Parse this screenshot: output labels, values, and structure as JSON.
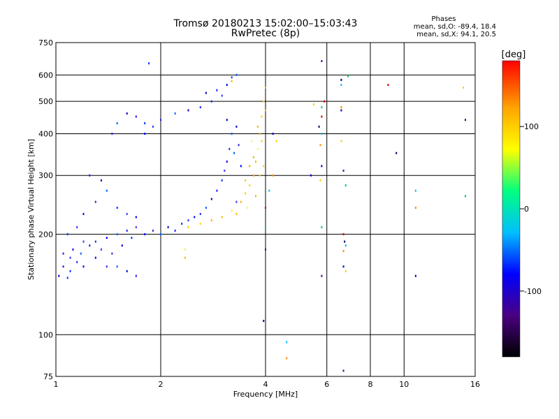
{
  "title_line1": "Tromsø 20180213 15:02:00–15:03:43",
  "title_line2": "RwPretec (8p)",
  "phases": {
    "title": "Phases",
    "stats_o": "mean, sd,O: -89.4, 18.4",
    "stats_x": "mean, sd,X:  94.1, 20.5"
  },
  "chart_data": {
    "type": "scatter",
    "title": "Tromsø 20180213 15:02:00–15:03:43",
    "subtitle": "RwPretec (8p)",
    "xlabel": "Frequency [MHz]",
    "ylabel": "Stationary phase Virtual Height [km]",
    "x_scale": "log",
    "y_scale": "log",
    "xlim": [
      1,
      16
    ],
    "ylim": [
      75,
      750
    ],
    "x_ticks": [
      1,
      2,
      4,
      6,
      8,
      10,
      16
    ],
    "x_tick_labels": [
      "1",
      "2",
      "4",
      "6",
      "8",
      "10",
      "16"
    ],
    "y_ticks": [
      75,
      100,
      200,
      300,
      400,
      500,
      600,
      750
    ],
    "y_tick_labels": [
      "75",
      "100",
      "200",
      "300",
      "400",
      "500",
      "600",
      "750"
    ],
    "grid_x": [
      1,
      2,
      4,
      6,
      8,
      10,
      16
    ],
    "grid_y": [
      100,
      200,
      300,
      400,
      500,
      600
    ],
    "grid": true,
    "colorbar": {
      "label": "[deg]",
      "range": [
        -180,
        180
      ],
      "ticks": [
        100,
        0,
        -100
      ],
      "tick_labels": [
        "100",
        "0",
        "-100"
      ],
      "colormap": [
        "#000000",
        "#4b0082",
        "#0000ff",
        "#00bfff",
        "#00ff7f",
        "#ffff00",
        "#ffa500",
        "#ff0000"
      ]
    },
    "series": [
      {
        "mode": "O",
        "points": [
          [
            1.02,
            150
          ],
          [
            1.05,
            160
          ],
          [
            1.08,
            148
          ],
          [
            1.1,
            170
          ],
          [
            1.12,
            180
          ],
          [
            1.15,
            165
          ],
          [
            1.18,
            175
          ],
          [
            1.2,
            160
          ],
          [
            1.25,
            185
          ],
          [
            1.3,
            190
          ],
          [
            1.35,
            180
          ],
          [
            1.4,
            195
          ],
          [
            1.45,
            175
          ],
          [
            1.5,
            200
          ],
          [
            1.55,
            185
          ],
          [
            1.6,
            205
          ],
          [
            1.65,
            195
          ],
          [
            1.7,
            210
          ],
          [
            1.8,
            200
          ],
          [
            1.9,
            205
          ],
          [
            2.0,
            200
          ],
          [
            2.1,
            210
          ],
          [
            2.2,
            205
          ],
          [
            2.3,
            215
          ],
          [
            2.4,
            220
          ],
          [
            2.5,
            225
          ],
          [
            2.6,
            230
          ],
          [
            2.7,
            240
          ],
          [
            2.8,
            255
          ],
          [
            2.9,
            270
          ],
          [
            3.0,
            290
          ],
          [
            3.05,
            310
          ],
          [
            3.1,
            330
          ],
          [
            3.15,
            360
          ],
          [
            3.2,
            400
          ],
          [
            3.1,
            440
          ],
          [
            1.05,
            175
          ],
          [
            1.1,
            155
          ],
          [
            1.2,
            190
          ],
          [
            1.3,
            170
          ],
          [
            1.4,
            160
          ],
          [
            1.5,
            160
          ],
          [
            1.6,
            155
          ],
          [
            1.7,
            150
          ],
          [
            1.08,
            200
          ],
          [
            1.15,
            210
          ],
          [
            1.2,
            230
          ],
          [
            1.3,
            250
          ],
          [
            1.4,
            270
          ],
          [
            1.35,
            290
          ],
          [
            1.25,
            300
          ],
          [
            1.5,
            240
          ],
          [
            1.6,
            230
          ],
          [
            1.7,
            225
          ],
          [
            1.45,
            400
          ],
          [
            1.5,
            430
          ],
          [
            1.6,
            460
          ],
          [
            1.7,
            450
          ],
          [
            1.8,
            430
          ],
          [
            1.9,
            420
          ],
          [
            1.8,
            400
          ],
          [
            2.0,
            440
          ],
          [
            2.2,
            460
          ],
          [
            2.4,
            470
          ],
          [
            2.6,
            480
          ],
          [
            2.8,
            500
          ],
          [
            3.0,
            520
          ],
          [
            3.1,
            560
          ],
          [
            3.2,
            590
          ],
          [
            3.3,
            600
          ],
          [
            2.7,
            530
          ],
          [
            2.9,
            540
          ],
          [
            1.85,
            650
          ],
          [
            3.3,
            250
          ],
          [
            3.4,
            320
          ],
          [
            3.35,
            370
          ],
          [
            3.25,
            350
          ],
          [
            3.3,
            420
          ]
        ]
      },
      {
        "mode": "X",
        "points": [
          [
            2.4,
            210
          ],
          [
            2.6,
            215
          ],
          [
            2.8,
            220
          ],
          [
            3.0,
            225
          ],
          [
            3.2,
            235
          ],
          [
            3.4,
            250
          ],
          [
            3.5,
            265
          ],
          [
            3.6,
            280
          ],
          [
            3.7,
            300
          ],
          [
            3.75,
            330
          ],
          [
            3.8,
            360
          ],
          [
            3.85,
            400
          ],
          [
            3.9,
            450
          ],
          [
            3.95,
            500
          ],
          [
            4.0,
            550
          ],
          [
            3.7,
            340
          ],
          [
            3.65,
            380
          ],
          [
            3.8,
            420
          ],
          [
            3.9,
            380
          ],
          [
            3.95,
            320
          ],
          [
            3.6,
            320
          ],
          [
            2.35,
            170
          ],
          [
            2.35,
            180
          ],
          [
            3.2,
            575
          ],
          [
            3.5,
            290
          ],
          [
            3.85,
            300
          ],
          [
            4.0,
            470
          ],
          [
            3.75,
            260
          ],
          [
            3.55,
            240
          ],
          [
            3.3,
            230
          ]
        ]
      },
      {
        "mode": "scattered",
        "points": [
          [
            4.1,
            270
          ],
          [
            4.2,
            300
          ],
          [
            4.2,
            400
          ],
          [
            4.3,
            380
          ],
          [
            4.0,
            180
          ],
          [
            4.0,
            210
          ],
          [
            4.0,
            240
          ],
          [
            3.95,
            110
          ],
          [
            4.6,
            95
          ],
          [
            4.6,
            85
          ],
          [
            5.4,
            300
          ],
          [
            5.5,
            490
          ],
          [
            5.8,
            660
          ],
          [
            5.8,
            480
          ],
          [
            5.8,
            450
          ],
          [
            5.7,
            420
          ],
          [
            5.8,
            400
          ],
          [
            5.75,
            370
          ],
          [
            5.8,
            320
          ],
          [
            5.75,
            290
          ],
          [
            5.8,
            150
          ],
          [
            5.8,
            210
          ],
          [
            5.9,
            500
          ],
          [
            6.6,
            580
          ],
          [
            6.6,
            560
          ],
          [
            6.6,
            480
          ],
          [
            6.6,
            470
          ],
          [
            6.6,
            380
          ],
          [
            6.7,
            310
          ],
          [
            6.8,
            280
          ],
          [
            6.7,
            200
          ],
          [
            6.75,
            190
          ],
          [
            6.8,
            185
          ],
          [
            6.7,
            178
          ],
          [
            6.7,
            160
          ],
          [
            6.8,
            155
          ],
          [
            6.7,
            78
          ],
          [
            6.9,
            595
          ],
          [
            9.0,
            560
          ],
          [
            9.5,
            350
          ],
          [
            10.8,
            270
          ],
          [
            10.8,
            240
          ],
          [
            10.8,
            150
          ],
          [
            14.8,
            550
          ],
          [
            15.0,
            440
          ],
          [
            15.0,
            260
          ]
        ]
      }
    ]
  }
}
